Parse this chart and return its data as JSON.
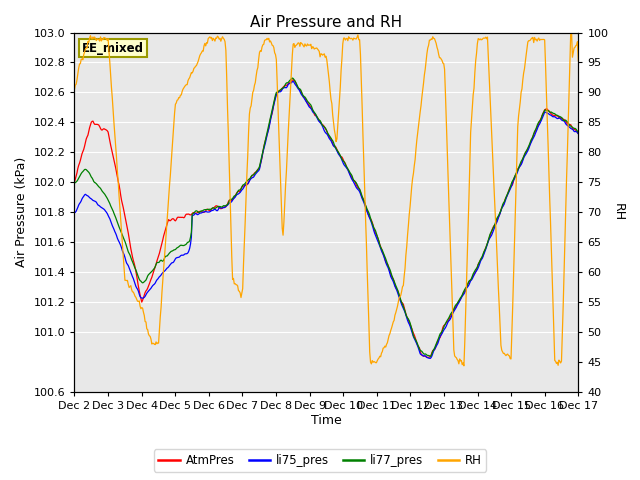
{
  "title": "Air Pressure and RH",
  "ylabel_left": "Air Pressure (kPa)",
  "ylabel_right": "RH",
  "xlabel": "Time",
  "ylim_left": [
    100.6,
    103.0
  ],
  "ylim_right": [
    40,
    100
  ],
  "yticks_left": [
    100.6,
    101.0,
    101.2,
    101.4,
    101.6,
    101.8,
    102.0,
    102.2,
    102.4,
    102.6,
    102.8,
    103.0
  ],
  "yticks_right": [
    40,
    45,
    50,
    55,
    60,
    65,
    70,
    75,
    80,
    85,
    90,
    95,
    100
  ],
  "xtick_labels": [
    "Dec 2",
    "Dec 3",
    "Dec 4",
    "Dec 5",
    "Dec 6",
    "Dec 7",
    "Dec 8",
    "Dec 9",
    "Dec 10",
    "Dec 11",
    "Dec 12",
    "Dec 13",
    "Dec 14",
    "Dec 15",
    "Dec 16",
    "Dec 17"
  ],
  "background_color": "#e8e8e8",
  "box_label": "EE_mixed",
  "box_color": "#ffffcc",
  "box_border": "#999900",
  "legend_entries": [
    "AtmPres",
    "li75_pres",
    "li77_pres",
    "RH"
  ],
  "line_colors": [
    "red",
    "blue",
    "green",
    "orange"
  ],
  "title_fontsize": 11,
  "axis_fontsize": 9,
  "tick_fontsize": 8,
  "n_points": 600,
  "xlim": [
    0,
    15
  ],
  "xtick_positions": [
    0,
    1,
    2,
    3,
    4,
    5,
    6,
    7,
    8,
    9,
    10,
    11,
    12,
    13,
    14,
    15
  ]
}
